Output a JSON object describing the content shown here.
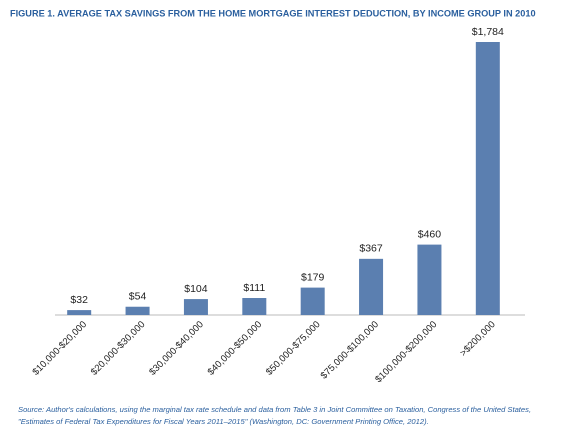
{
  "chart_data": {
    "type": "bar",
    "title": "FIGURE 1. AVERAGE TAX SAVINGS FROM THE HOME MORTGAGE INTEREST DEDUCTION, BY INCOME GROUP IN 2010",
    "categories": [
      "$10,000-$20,000",
      "$20,000-$30,000",
      "$30,000-$40,000",
      "$40,000-$50,000",
      "$50,000-$75,000",
      "$75,000-$100,000",
      "$100,000-$200,000",
      ">$200,000"
    ],
    "values": [
      32,
      54,
      104,
      111,
      179,
      367,
      460,
      1784
    ],
    "value_labels": [
      "$32",
      "$54",
      "$104",
      "$111",
      "$179",
      "$367",
      "$460",
      "$1,784"
    ],
    "color": "#5b7fb0",
    "source": [
      "Source: Author's calculations, using the marginal tax rate schedule and data from Table 3 in Joint Committee on Taxation, Congress of the United States,",
      "\"Estimates of Federal Tax Expenditures for Fiscal Years 2011–2015\" (Washington, DC: Government Printing Office, 2012)."
    ]
  }
}
